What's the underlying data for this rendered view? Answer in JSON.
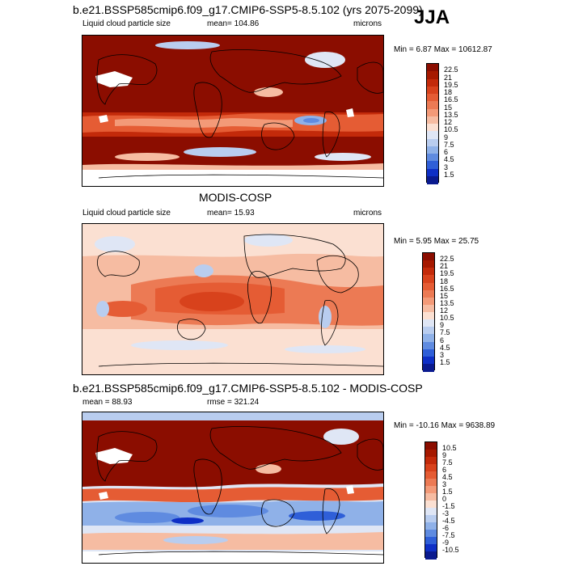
{
  "season": "JJA",
  "panels": [
    {
      "title": "b.e21.BSSP585cmip6.f09_g17.CMIP6-SSP5-8.5.102 (yrs 2075-2099)",
      "left_label": "Liquid cloud particle size",
      "center_label": "mean= 104.86",
      "right_label": "microns",
      "minmax": "Min =   6.87 Max = 10612.87",
      "style": "model"
    },
    {
      "title": "MODIS-COSP",
      "left_label": "Liquid cloud particle size",
      "center_label": "mean=  15.93",
      "right_label": "microns",
      "minmax": "Min =   5.95 Max =  25.75",
      "style": "obs"
    },
    {
      "title": "b.e21.BSSP585cmip6.f09_g17.CMIP6-SSP5-8.5.102 - MODIS-COSP",
      "left_label": "mean =  88.93",
      "center_label": "rmse = 321.24",
      "right_label": "",
      "minmax": "Min = -10.16 Max = 9638.89",
      "style": "diff"
    }
  ],
  "legends": [
    {
      "ticks": [
        "22.5",
        "21",
        "19.5",
        "18",
        "16.5",
        "15",
        "13.5",
        "12",
        "10.5",
        "9",
        "7.5",
        "6",
        "4.5",
        "3",
        "1.5"
      ],
      "colors": [
        "#8b0d00",
        "#a61900",
        "#c32a0a",
        "#d8421c",
        "#e55c34",
        "#ec7a54",
        "#f39a78",
        "#f6bca2",
        "#fbe0d2",
        "#dfe6f5",
        "#b9cdef",
        "#8fb1e8",
        "#5f8be0",
        "#2f5fd8",
        "#0e2fc6",
        "#0a1a8f"
      ]
    },
    {
      "ticks": [
        "22.5",
        "21",
        "19.5",
        "18",
        "16.5",
        "15",
        "13.5",
        "12",
        "10.5",
        "9",
        "7.5",
        "6",
        "4.5",
        "3",
        "1.5"
      ],
      "colors": [
        "#8b0d00",
        "#a61900",
        "#c32a0a",
        "#d8421c",
        "#e55c34",
        "#ec7a54",
        "#f39a78",
        "#f6bca2",
        "#fbe0d2",
        "#dfe6f5",
        "#b9cdef",
        "#8fb1e8",
        "#5f8be0",
        "#2f5fd8",
        "#0e2fc6",
        "#0a1a8f"
      ]
    },
    {
      "ticks": [
        "10.5",
        "9",
        "7.5",
        "6",
        "4.5",
        "3",
        "1.5",
        "0",
        "-1.5",
        "-3",
        "-4.5",
        "-6",
        "-7.5",
        "-9",
        "-10.5"
      ],
      "colors": [
        "#8b0d00",
        "#a61900",
        "#c32a0a",
        "#d8421c",
        "#e55c34",
        "#ec7a54",
        "#f39a78",
        "#f6bca2",
        "#fbe0d2",
        "#dfe6f5",
        "#b9cdef",
        "#8fb1e8",
        "#5f8be0",
        "#2f5fd8",
        "#0e2fc6",
        "#0a1a8f"
      ]
    }
  ],
  "chart_data": [
    {
      "type": "heatmap",
      "title": "b.e21.BSSP585cmip6.f09_g17.CMIP6-SSP5-8.5.102 (yrs 2075-2099)",
      "variable": "Liquid cloud particle size",
      "units": "microns",
      "mean": 104.86,
      "min": 6.87,
      "max": 10612.87,
      "season": "JJA"
    },
    {
      "type": "heatmap",
      "title": "MODIS-COSP",
      "variable": "Liquid cloud particle size",
      "units": "microns",
      "mean": 15.93,
      "min": 5.95,
      "max": 25.75,
      "season": "JJA"
    },
    {
      "type": "heatmap",
      "title": "b.e21.BSSP585cmip6.f09_g17.CMIP6-SSP5-8.5.102 - MODIS-COSP",
      "mean": 88.93,
      "rmse": 321.24,
      "min": -10.16,
      "max": 9638.89,
      "season": "JJA"
    }
  ]
}
